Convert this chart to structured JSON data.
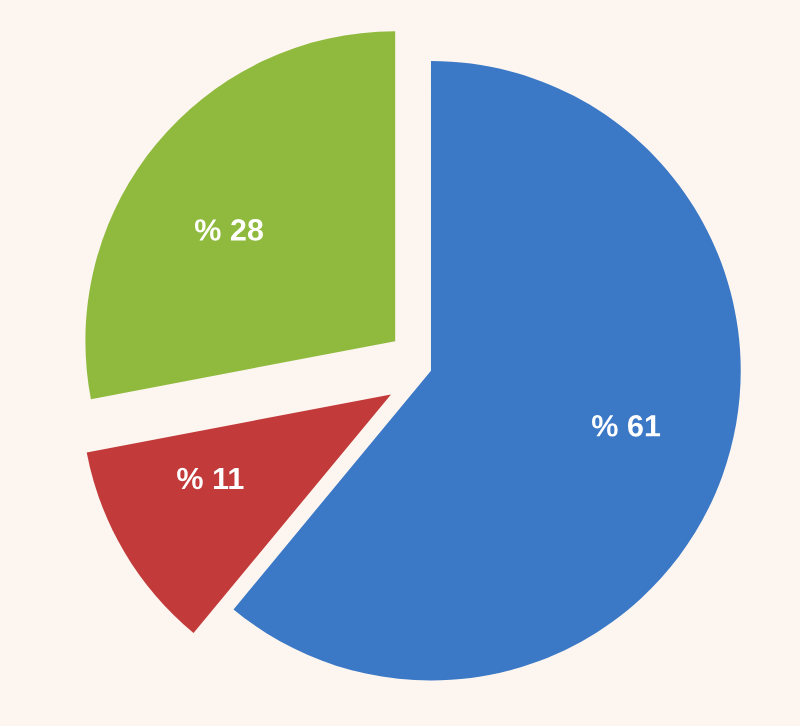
{
  "chart_data": {
    "type": "pie",
    "categories": [
      null,
      null,
      null
    ],
    "values": [
      61,
      11,
      28
    ],
    "colors": [
      "#3b78c6",
      "#c23a3a",
      "#8fba3e"
    ],
    "value_labels": [
      "% 61",
      "% 11",
      "% 28"
    ]
  }
}
